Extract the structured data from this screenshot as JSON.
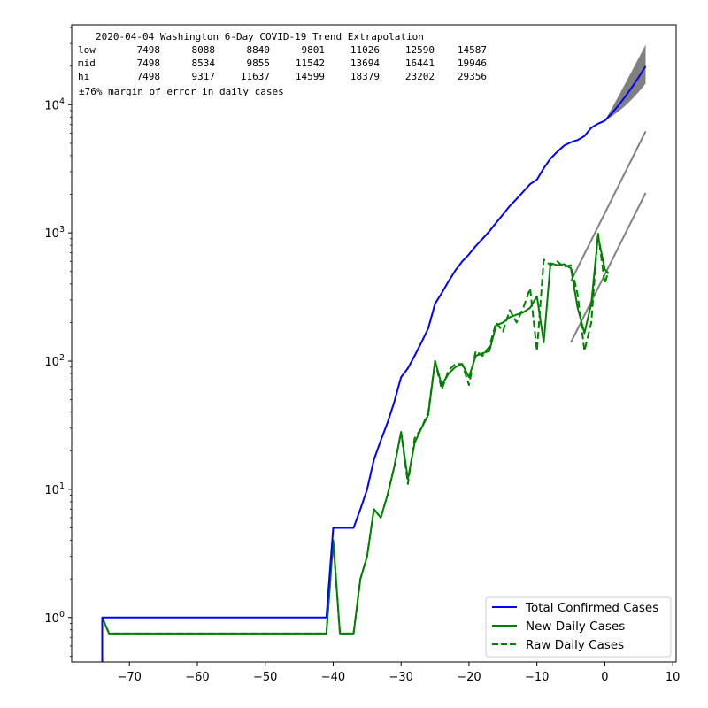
{
  "chart_data": {
    "type": "line",
    "title": "",
    "xlabel": "",
    "ylabel": "",
    "xlim": [
      -78.5,
      10.5
    ],
    "ylim": [
      0.45,
      42000
    ],
    "yscale": "log",
    "grid": false,
    "legend_position": "bottom-right",
    "x_ticks": [
      -70,
      -60,
      -50,
      -40,
      -30,
      -20,
      -10,
      0,
      10
    ],
    "y_ticks": [
      {
        "value": 1,
        "base": "10",
        "exp": "0"
      },
      {
        "value": 10,
        "base": "10",
        "exp": "1"
      },
      {
        "value": 100,
        "base": "10",
        "exp": "2"
      },
      {
        "value": 1000,
        "base": "10",
        "exp": "3"
      },
      {
        "value": 10000,
        "base": "10",
        "exp": "4"
      }
    ],
    "annotation": {
      "heading": "2020-04-04 Washington 6-Day COVID-19 Trend Extrapolation",
      "rows": [
        {
          "label": "low",
          "values": [
            "7498",
            "8088",
            "8840",
            "9801",
            "11026",
            "12590",
            "14587"
          ]
        },
        {
          "label": "mid",
          "values": [
            "7498",
            "8534",
            "9855",
            "11542",
            "13694",
            "16441",
            "19946"
          ]
        },
        {
          "label": "hi",
          "values": [
            "7498",
            "9317",
            "11637",
            "14599",
            "18379",
            "23202",
            "29356"
          ]
        }
      ],
      "margin_note": "±76% margin of error in daily cases"
    },
    "series": [
      {
        "name": "Total Confirmed Cases",
        "color": "#0000ff",
        "style": "solid",
        "points": [
          [
            -74,
            0.3
          ],
          [
            -74,
            1
          ],
          [
            -73,
            1
          ],
          [
            -60,
            1
          ],
          [
            -50,
            1
          ],
          [
            -41,
            1
          ],
          [
            -40,
            5
          ],
          [
            -39,
            5
          ],
          [
            -38,
            5
          ],
          [
            -37,
            5
          ],
          [
            -36,
            7
          ],
          [
            -35,
            10
          ],
          [
            -34,
            17
          ],
          [
            -33,
            24
          ],
          [
            -32,
            33
          ],
          [
            -31,
            48
          ],
          [
            -30,
            75
          ],
          [
            -29,
            88
          ],
          [
            -28,
            110
          ],
          [
            -27,
            140
          ],
          [
            -26,
            180
          ],
          [
            -25,
            280
          ],
          [
            -24,
            340
          ],
          [
            -23,
            420
          ],
          [
            -22,
            510
          ],
          [
            -21,
            600
          ],
          [
            -20,
            680
          ],
          [
            -19,
            790
          ],
          [
            -18,
            900
          ],
          [
            -17,
            1030
          ],
          [
            -16,
            1200
          ],
          [
            -15,
            1390
          ],
          [
            -14,
            1620
          ],
          [
            -13,
            1840
          ],
          [
            -12,
            2100
          ],
          [
            -11,
            2400
          ],
          [
            -10,
            2600
          ],
          [
            -9,
            3200
          ],
          [
            -8,
            3800
          ],
          [
            -7,
            4300
          ],
          [
            -6,
            4800
          ],
          [
            -5,
            5100
          ],
          [
            -4,
            5300
          ],
          [
            -3,
            5700
          ],
          [
            -2,
            6600
          ],
          [
            -1,
            7100
          ],
          [
            0,
            7500
          ],
          [
            1,
            8534
          ],
          [
            2,
            9855
          ],
          [
            3,
            11542
          ],
          [
            4,
            13694
          ],
          [
            5,
            16441
          ],
          [
            6,
            19946
          ]
        ]
      },
      {
        "name": "New Daily Cases",
        "color": "#008000",
        "style": "solid",
        "points": [
          [
            -74,
            1
          ],
          [
            -73,
            0.75
          ],
          [
            -60,
            0.75
          ],
          [
            -50,
            0.75
          ],
          [
            -41,
            0.75
          ],
          [
            -40,
            4
          ],
          [
            -39,
            0.75
          ],
          [
            -38,
            0.75
          ],
          [
            -37,
            0.75
          ],
          [
            -36,
            2
          ],
          [
            -35,
            3
          ],
          [
            -34,
            7
          ],
          [
            -33,
            6
          ],
          [
            -32,
            9
          ],
          [
            -31,
            15
          ],
          [
            -30,
            28
          ],
          [
            -29,
            12
          ],
          [
            -28,
            23
          ],
          [
            -27,
            30
          ],
          [
            -26,
            38
          ],
          [
            -25,
            100
          ],
          [
            -24,
            65
          ],
          [
            -23,
            80
          ],
          [
            -22,
            90
          ],
          [
            -21,
            95
          ],
          [
            -20,
            75
          ],
          [
            -19,
            110
          ],
          [
            -18,
            115
          ],
          [
            -17,
            120
          ],
          [
            -16,
            190
          ],
          [
            -15,
            200
          ],
          [
            -14,
            220
          ],
          [
            -13,
            230
          ],
          [
            -12,
            240
          ],
          [
            -11,
            260
          ],
          [
            -10,
            320
          ],
          [
            -9,
            140
          ],
          [
            -8,
            580
          ],
          [
            -7,
            560
          ],
          [
            -6,
            570
          ],
          [
            -5,
            530
          ],
          [
            -4,
            260
          ],
          [
            -3,
            165
          ],
          [
            -2,
            280
          ],
          [
            -1,
            950
          ],
          [
            0,
            520
          ],
          [
            0.5,
            480
          ]
        ]
      },
      {
        "name": "Raw Daily Cases",
        "color": "#008000",
        "style": "dashed",
        "points": [
          [
            -74,
            1
          ],
          [
            -73,
            0.75
          ],
          [
            -60,
            0.75
          ],
          [
            -50,
            0.75
          ],
          [
            -41,
            0.75
          ],
          [
            -40,
            4
          ],
          [
            -39,
            0.75
          ],
          [
            -38,
            0.75
          ],
          [
            -37,
            0.75
          ],
          [
            -36,
            2
          ],
          [
            -35,
            3
          ],
          [
            -34,
            7
          ],
          [
            -33,
            6
          ],
          [
            -32,
            9
          ],
          [
            -31,
            15
          ],
          [
            -30,
            28
          ],
          [
            -29,
            11
          ],
          [
            -28,
            25
          ],
          [
            -27,
            30
          ],
          [
            -26,
            40
          ],
          [
            -25,
            100
          ],
          [
            -24,
            60
          ],
          [
            -23,
            85
          ],
          [
            -22,
            95
          ],
          [
            -21,
            95
          ],
          [
            -20,
            65
          ],
          [
            -19,
            120
          ],
          [
            -18,
            110
          ],
          [
            -17,
            130
          ],
          [
            -16,
            200
          ],
          [
            -15,
            170
          ],
          [
            -14,
            250
          ],
          [
            -13,
            200
          ],
          [
            -12,
            260
          ],
          [
            -11,
            370
          ],
          [
            -10,
            120
          ],
          [
            -9,
            620
          ],
          [
            -8,
            560
          ],
          [
            -7,
            600
          ],
          [
            -6,
            540
          ],
          [
            -5,
            560
          ],
          [
            -4,
            330
          ],
          [
            -3,
            120
          ],
          [
            -2,
            200
          ],
          [
            -1,
            1000
          ],
          [
            0,
            400
          ],
          [
            0.5,
            500
          ]
        ]
      }
    ],
    "trend_lines": [
      {
        "color": "#808080",
        "points": [
          [
            -5,
            420
          ],
          [
            6,
            6200
          ]
        ]
      },
      {
        "color": "#808080",
        "points": [
          [
            -5,
            140
          ],
          [
            6,
            2050
          ]
        ]
      }
    ],
    "band": {
      "color": "#808080",
      "x": [
        0,
        1,
        2,
        3,
        4,
        5,
        6
      ],
      "low": [
        7498,
        8088,
        8840,
        9801,
        11026,
        12590,
        14587
      ],
      "high": [
        7498,
        9317,
        11637,
        14599,
        18379,
        23202,
        29356
      ]
    },
    "legend": [
      {
        "label": "Total Confirmed Cases",
        "color": "#0000ff",
        "style": "solid"
      },
      {
        "label": "New Daily Cases",
        "color": "#008000",
        "style": "solid"
      },
      {
        "label": "Raw Daily Cases",
        "color": "#008000",
        "style": "dashed"
      }
    ]
  }
}
